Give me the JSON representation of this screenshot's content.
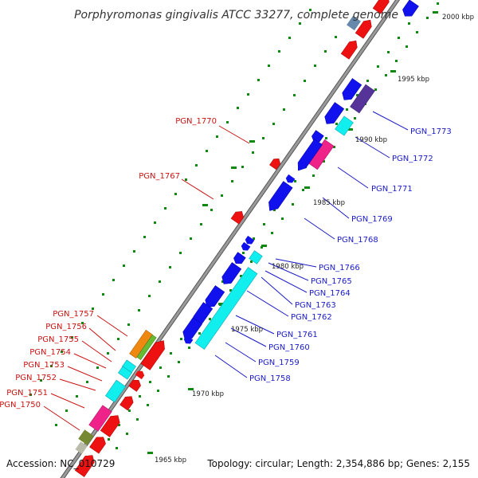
{
  "title": "Porphyromonas gingivalis ATCC 33277, complete genome",
  "footer": {
    "accession": "Accession: NC_010729",
    "stats": "Topology: circular; Length: 2,354,886 bp; Genes: 2,155"
  },
  "scale_labels": [
    "2000 kbp",
    "1995 kbp",
    "1990 kbp",
    "1985 kbp",
    "1980 kbp",
    "1975 kbp",
    "1970 kbp",
    "1965 kbp"
  ],
  "colors": {
    "forward_strand": "#ee1111",
    "reverse_strand": "#1111ee",
    "cyan_feature": "#11eeee",
    "magenta_feature": "#ee2288",
    "purple_feature": "#553399",
    "orange_feature": "#ee8811",
    "green_feature": "#66bb33",
    "olive_feature": "#778833",
    "steel_feature": "#6688aa",
    "backbone": "#888888",
    "tick_dots": "#118811",
    "label_red": "#cc1111",
    "label_blue": "#1a1ac8"
  },
  "forward_gene_labels": [
    "PGN_1770",
    "PGN_1767",
    "PGN_1757",
    "PGN_1756",
    "PGN_1755",
    "PGN_1754",
    "PGN_1753",
    "PGN_1752",
    "PGN_1751",
    "PGN_1750"
  ],
  "reverse_gene_labels": [
    "PGN_1773",
    "PGN_1772",
    "PGN_1771",
    "PGN_1769",
    "PGN_1768",
    "PGN_1766",
    "PGN_1765",
    "PGN_1764",
    "PGN_1763",
    "PGN_1762",
    "PGN_1761",
    "PGN_1760",
    "PGN_1759",
    "PGN_1758"
  ]
}
